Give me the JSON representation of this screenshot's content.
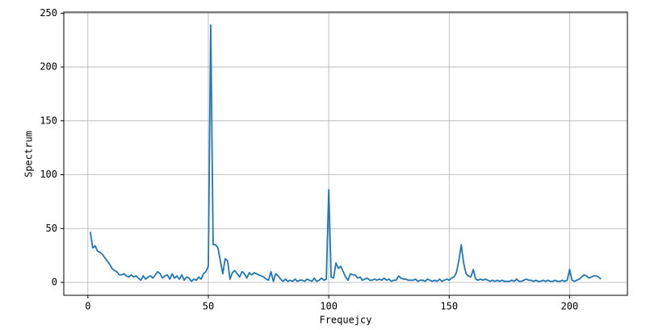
{
  "chart_data": {
    "type": "line",
    "x_label": "Frequejcy",
    "y_label": "Spectrum",
    "x": [
      1,
      2,
      3,
      4,
      5,
      6,
      7,
      8,
      9,
      10,
      11,
      12,
      13,
      14,
      15,
      16,
      17,
      18,
      19,
      20,
      21,
      22,
      23,
      24,
      25,
      26,
      27,
      28,
      29,
      30,
      31,
      32,
      33,
      34,
      35,
      36,
      37,
      38,
      39,
      40,
      41,
      42,
      43,
      44,
      45,
      46,
      47,
      48,
      49,
      50,
      51,
      52,
      53,
      54,
      55,
      56,
      57,
      58,
      59,
      60,
      61,
      62,
      63,
      64,
      65,
      66,
      67,
      68,
      69,
      70,
      71,
      72,
      73,
      74,
      75,
      76,
      77,
      78,
      79,
      80,
      81,
      82,
      83,
      84,
      85,
      86,
      87,
      88,
      89,
      90,
      91,
      92,
      93,
      94,
      95,
      96,
      97,
      98,
      99,
      100,
      101,
      102,
      103,
      104,
      105,
      106,
      107,
      108,
      109,
      110,
      111,
      112,
      113,
      114,
      115,
      116,
      117,
      118,
      119,
      120,
      121,
      122,
      123,
      124,
      125,
      126,
      127,
      128,
      129,
      130,
      131,
      132,
      133,
      134,
      135,
      136,
      137,
      138,
      139,
      140,
      141,
      142,
      143,
      144,
      145,
      146,
      147,
      148,
      149,
      150,
      151,
      152,
      153,
      154,
      155,
      156,
      157,
      158,
      159,
      160,
      161,
      162,
      163,
      164,
      165,
      166,
      167,
      168,
      169,
      170,
      171,
      172,
      173,
      174,
      175,
      176,
      177,
      178,
      179,
      180,
      181,
      182,
      183,
      184,
      185,
      186,
      187,
      188,
      189,
      190,
      191,
      192,
      193,
      194,
      195,
      196,
      197,
      198,
      199,
      200,
      201,
      202,
      203,
      204,
      205,
      206,
      207,
      208,
      209,
      210,
      211,
      212,
      213
    ],
    "series": [
      {
        "color": "#1f77b4",
        "values": [
          47,
          32,
          34,
          29,
          28,
          26,
          23,
          20,
          17,
          13,
          11,
          10,
          7,
          7,
          8,
          6,
          5,
          7,
          5,
          6,
          4,
          2,
          6,
          3,
          5,
          6,
          4,
          7,
          10,
          8,
          4,
          6,
          7,
          3,
          8,
          4,
          6,
          3,
          7,
          2,
          5,
          4,
          1,
          3,
          2,
          5,
          3,
          8,
          10,
          15,
          239,
          35,
          35,
          32,
          20,
          8,
          22,
          20,
          3,
          9,
          11,
          8,
          5,
          10,
          8,
          4,
          9,
          7,
          9,
          8,
          7,
          6,
          5,
          3,
          2,
          10,
          1,
          8,
          6,
          3,
          1,
          3,
          1,
          2,
          1,
          3,
          1,
          2,
          2,
          1,
          3,
          2,
          1,
          4,
          1,
          2,
          4,
          2,
          3,
          86,
          5,
          4,
          18,
          13,
          15,
          10,
          5,
          2,
          8,
          7,
          7,
          4,
          5,
          2,
          3,
          4,
          2,
          2,
          3,
          2,
          3,
          2,
          4,
          2,
          3,
          1,
          2,
          2,
          6,
          4,
          3,
          3,
          2,
          2,
          2,
          3,
          1,
          2,
          2,
          1,
          3,
          2,
          1,
          2,
          1,
          3,
          1,
          2,
          3,
          2,
          4,
          5,
          9,
          20,
          35,
          18,
          8,
          6,
          5,
          12,
          3,
          2,
          3,
          2,
          3,
          2,
          1,
          2,
          1,
          2,
          1,
          2,
          1,
          1,
          1,
          2,
          1,
          3,
          1,
          1,
          2,
          3,
          2,
          2,
          1,
          2,
          1,
          1,
          2,
          1,
          2,
          1,
          1,
          2,
          1,
          1,
          2,
          1,
          2,
          12,
          2,
          1,
          2,
          3,
          5,
          7,
          6,
          4,
          5,
          6,
          6,
          5,
          3
        ]
      }
    ],
    "xlim": [
      -10,
      224
    ],
    "ylim": [
      -12,
      251
    ],
    "xticks": [
      0,
      50,
      100,
      150,
      200
    ],
    "yticks": [
      0,
      50,
      100,
      150,
      200,
      250
    ],
    "grid": true
  }
}
